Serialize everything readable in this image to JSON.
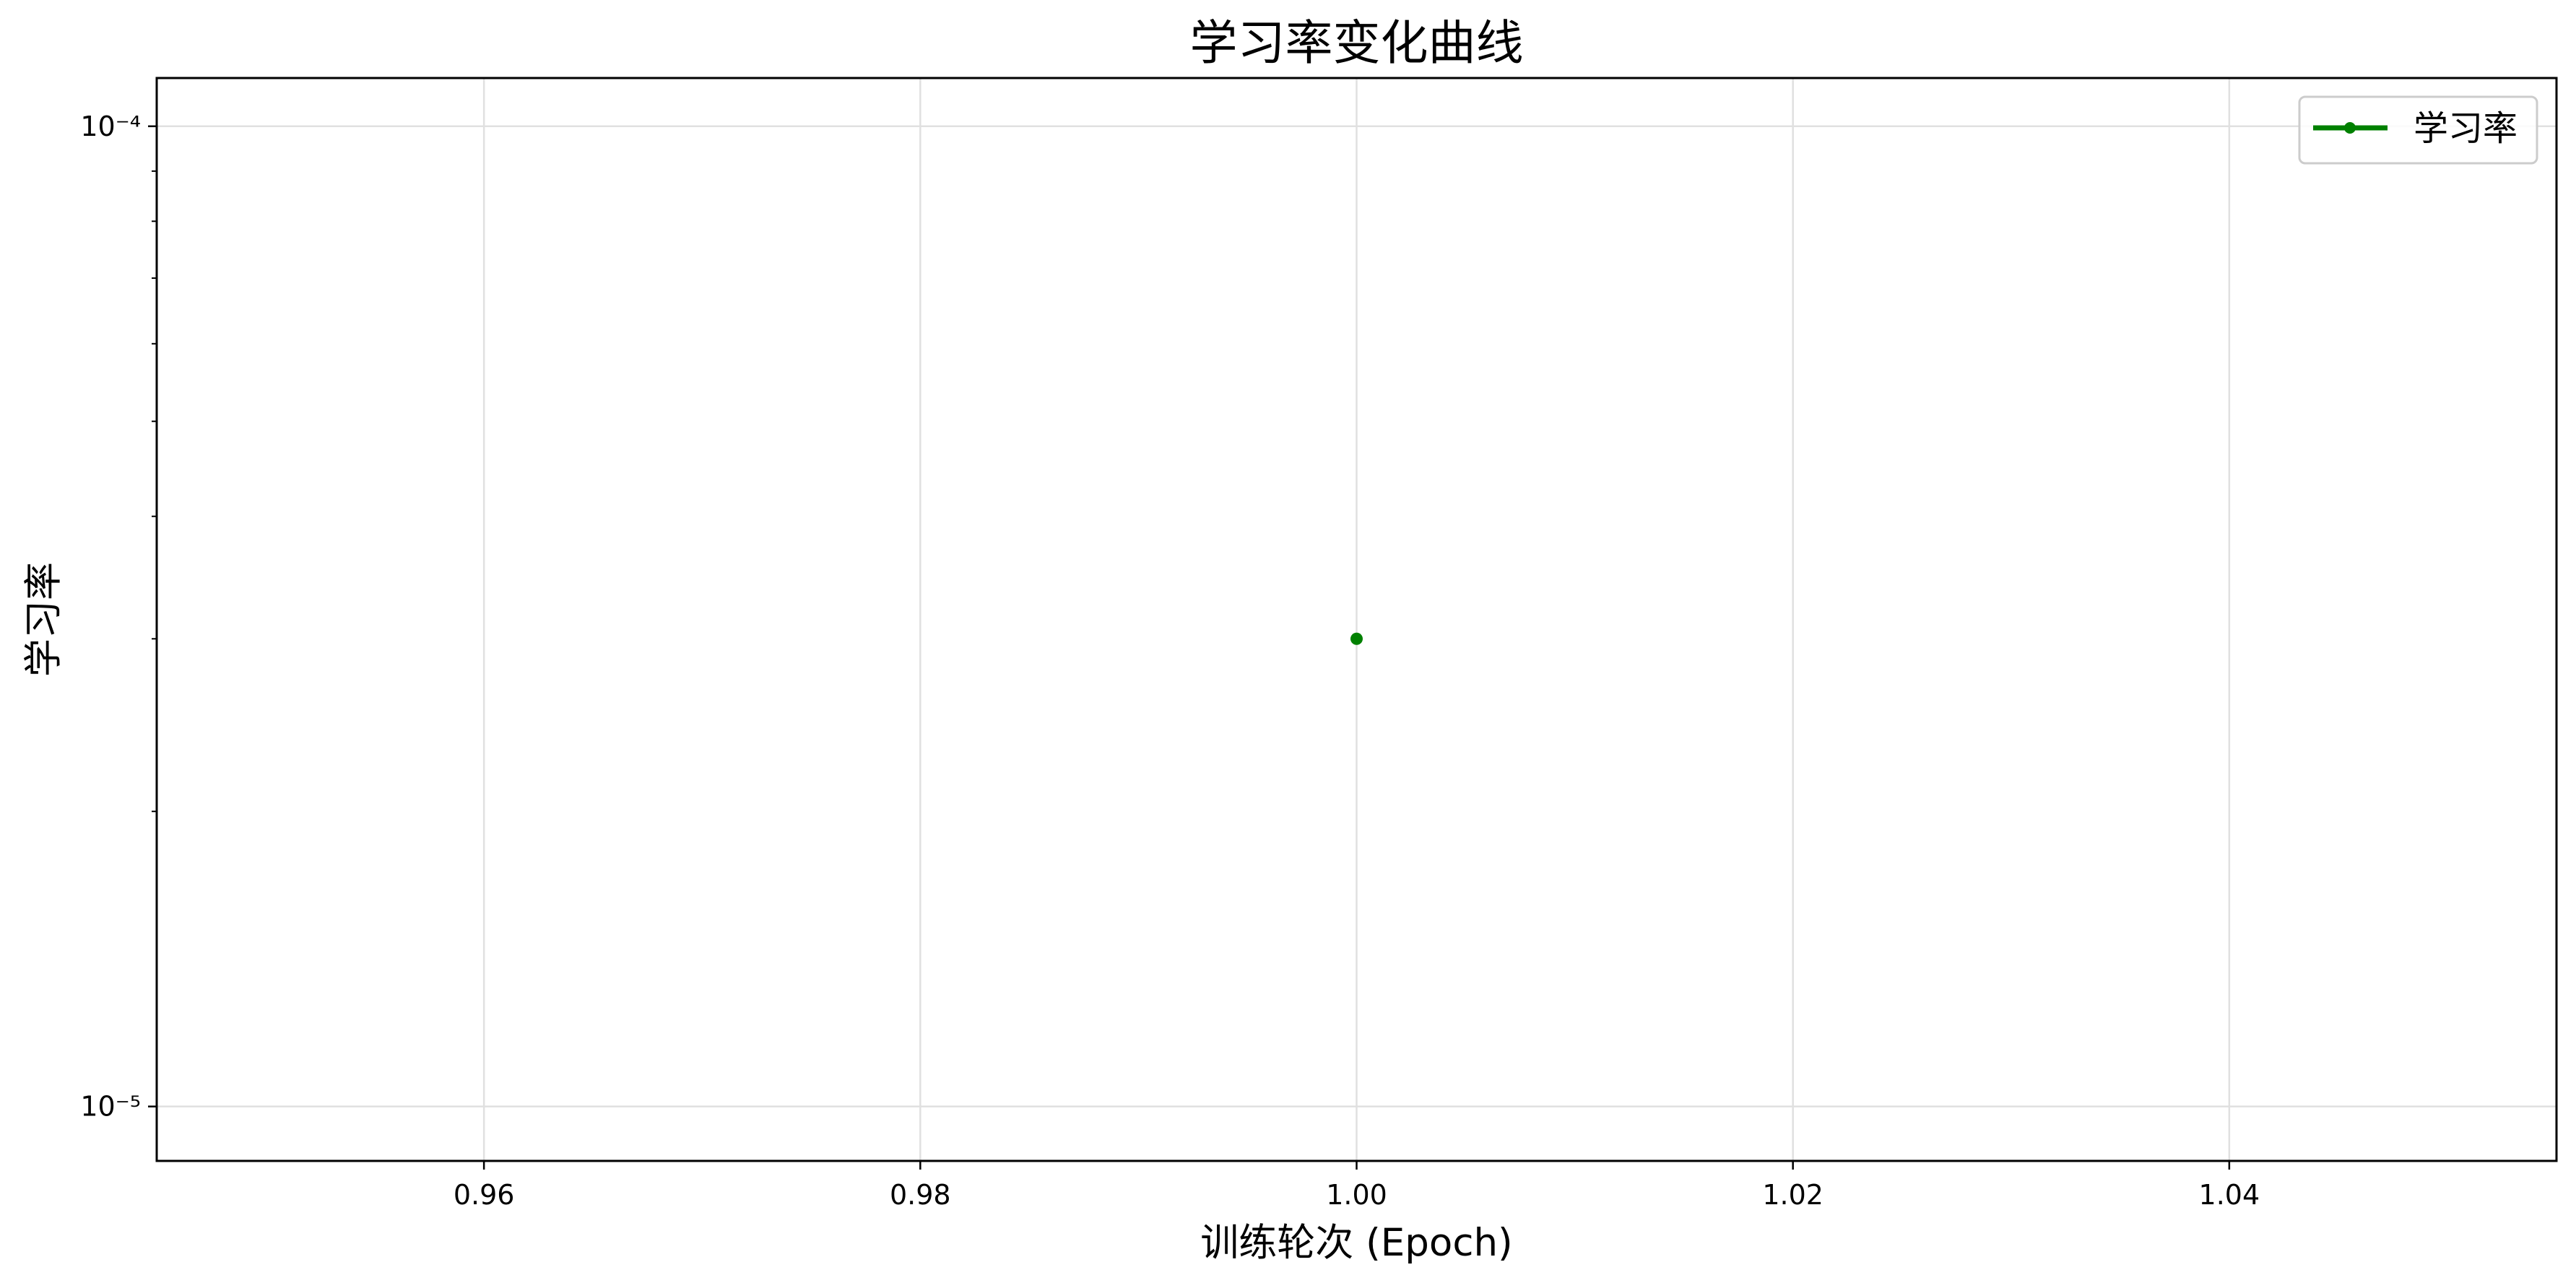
{
  "chart_data": {
    "type": "line",
    "title": "学习率变化曲线",
    "xlabel": "训练轮次 (Epoch)",
    "ylabel": "学习率",
    "x_scale": "linear",
    "y_scale": "log",
    "xlim": [
      0.945,
      1.055
    ],
    "ylim": [
      8.8e-06,
      0.000112
    ],
    "x_ticks": [
      0.96,
      0.98,
      1.0,
      1.02,
      1.04
    ],
    "x_tick_labels": [
      "0.96",
      "0.98",
      "1.00",
      "1.02",
      "1.04"
    ],
    "y_ticks": [
      0.0001,
      1e-05
    ],
    "y_tick_labels": [
      "10⁻⁴",
      "10⁻⁵"
    ],
    "y_minor_ticks": [
      2e-05,
      3e-05,
      4e-05,
      5e-05,
      6e-05,
      7e-05,
      8e-05,
      9e-05
    ],
    "grid": true,
    "legend_position": "top-right",
    "series": [
      {
        "name": "学习率",
        "color": "#008000",
        "marker": "circle",
        "x": [
          1.0
        ],
        "y": [
          3e-05
        ]
      }
    ]
  }
}
